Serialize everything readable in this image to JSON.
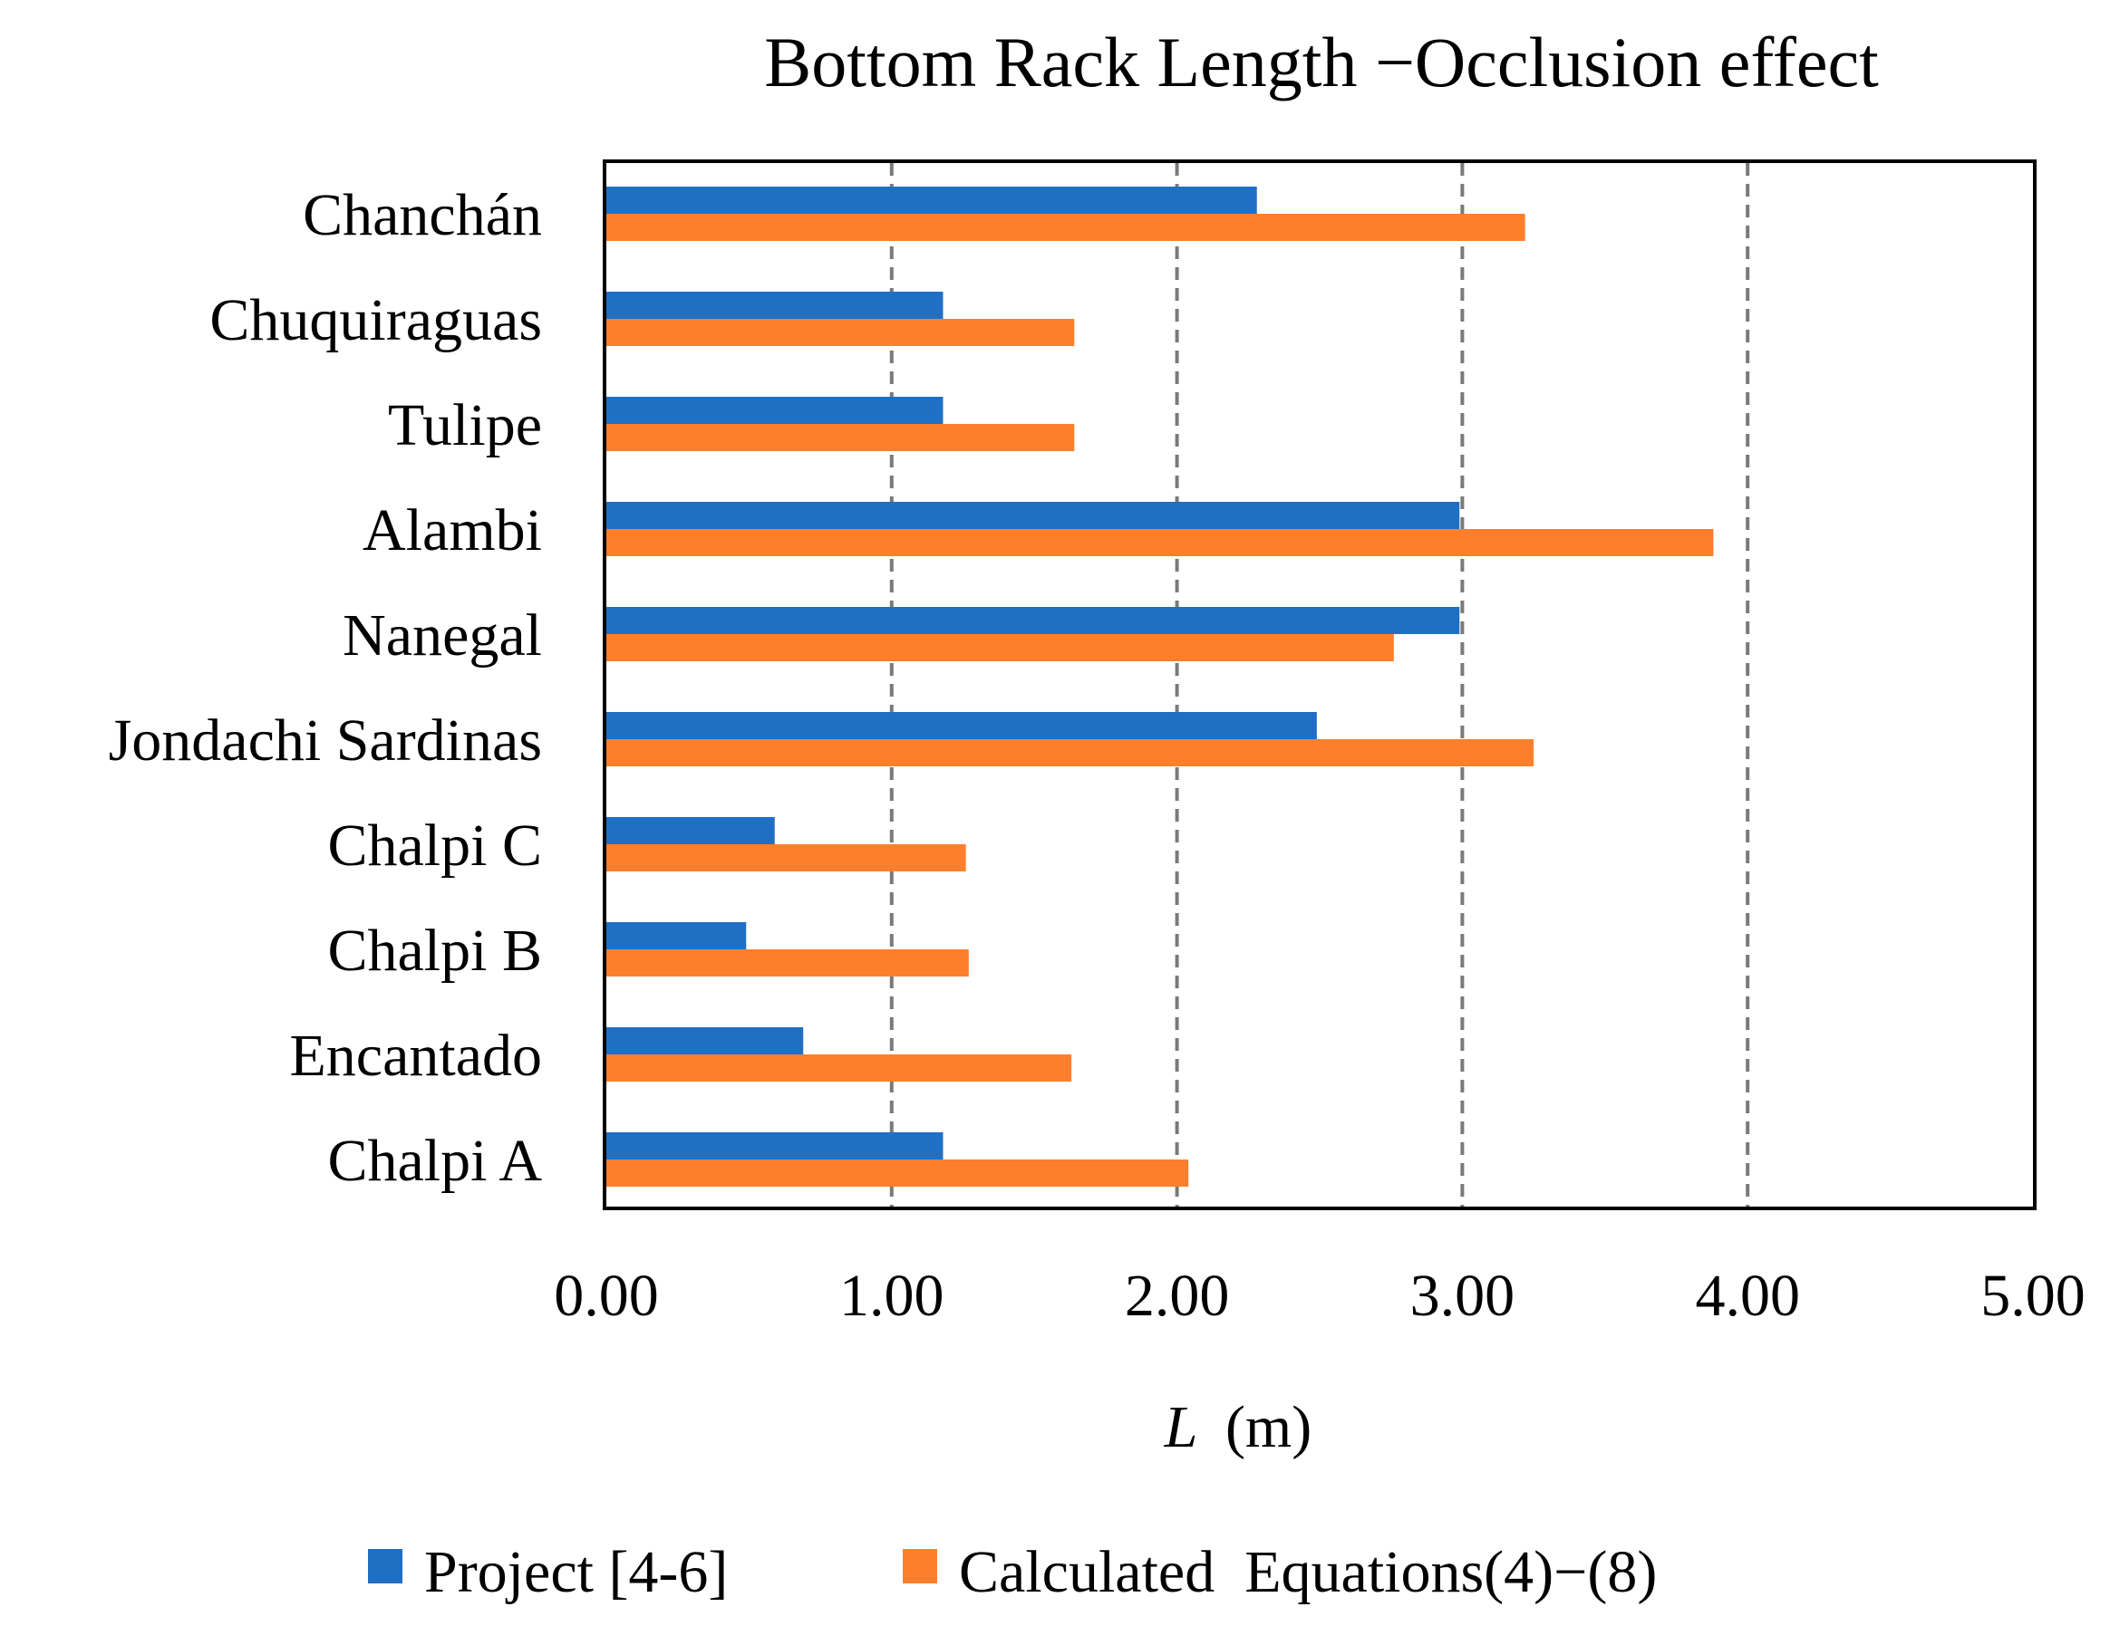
{
  "chart_data": {
    "type": "bar",
    "orientation": "horizontal",
    "title": "Bottom Rack Length −Occlusion effect",
    "xlabel_italic": "L",
    "xlabel_unit": "(m)",
    "ylabel": "",
    "categories": [
      "Chanchán",
      "Chuquiraguas",
      "Tulipe",
      "Alambi",
      "Nanegal",
      "Jondachi Sardinas",
      "Chalpi C",
      "Chalpi B",
      "Encantado",
      "Chalpi A"
    ],
    "series": [
      {
        "name": "Project [4-6]",
        "color": "#1f6fc5",
        "values": [
          2.28,
          1.18,
          1.18,
          2.99,
          2.99,
          2.49,
          0.59,
          0.49,
          0.69,
          1.18
        ]
      },
      {
        "name": "Calculated  Equations(4)−(8)",
        "color": "#fd7f2c",
        "values": [
          3.22,
          1.64,
          1.64,
          3.88,
          2.76,
          3.25,
          1.26,
          1.27,
          1.63,
          2.04
        ]
      }
    ],
    "xlim": [
      0,
      5
    ],
    "xticks": [
      0,
      1,
      2,
      3,
      4,
      5
    ],
    "xtick_labels": [
      "0.00",
      "1.00",
      "2.00",
      "3.00",
      "4.00",
      "5.00"
    ],
    "gridlines": [
      1,
      2,
      3,
      4
    ],
    "grid": "vertical dashed",
    "legend_position": "bottom"
  }
}
